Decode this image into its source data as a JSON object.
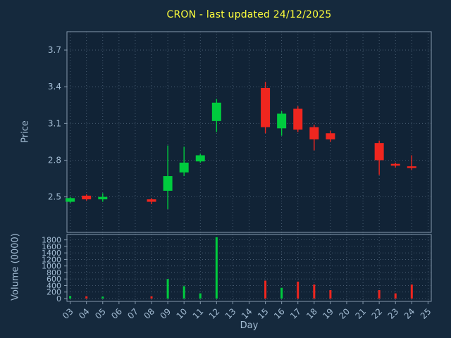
{
  "title": "CRON - last updated 24/12/2025",
  "colors": {
    "figure_bg": "#15293d",
    "axes_bg": "#112336",
    "grid": "#51667b",
    "frame": "#8599ad",
    "text": "#a4bdd4",
    "title": "#ffff3b",
    "up": "#00cc3e",
    "down": "#f0261f"
  },
  "chart_data": {
    "type": "candlestick",
    "title": "CRON - last updated 24/12/2025",
    "xlabel": "Day",
    "x_ticks": [
      "03",
      "04",
      "05",
      "06",
      "07",
      "08",
      "09",
      "10",
      "11",
      "12",
      "13",
      "14",
      "15",
      "16",
      "17",
      "18",
      "19",
      "20",
      "21",
      "22",
      "23",
      "24",
      "25"
    ],
    "price_axis": {
      "label": "Price",
      "ticks": [
        2.5,
        2.8,
        3.1,
        3.4,
        3.7
      ],
      "range": [
        2.21,
        3.85
      ]
    },
    "volume_axis": {
      "label": "Volume (0000)",
      "ticks": [
        0,
        200,
        400,
        600,
        800,
        1000,
        1200,
        1400,
        1600,
        1800
      ],
      "range": [
        0,
        1900
      ]
    },
    "candles": [
      {
        "day": 3,
        "open": 2.46,
        "high": 2.5,
        "low": 2.45,
        "close": 2.49,
        "volume": 80
      },
      {
        "day": 4,
        "open": 2.51,
        "high": 2.52,
        "low": 2.47,
        "close": 2.48,
        "volume": 70
      },
      {
        "day": 5,
        "open": 2.48,
        "high": 2.53,
        "low": 2.46,
        "close": 2.5,
        "volume": 60
      },
      {
        "day": 8,
        "open": 2.48,
        "high": 2.49,
        "low": 2.44,
        "close": 2.46,
        "volume": 70
      },
      {
        "day": 9,
        "open": 2.55,
        "high": 2.92,
        "low": 2.4,
        "close": 2.67,
        "volume": 600
      },
      {
        "day": 10,
        "open": 2.7,
        "high": 2.91,
        "low": 2.67,
        "close": 2.78,
        "volume": 380
      },
      {
        "day": 11,
        "open": 2.79,
        "high": 2.85,
        "low": 2.78,
        "close": 2.84,
        "volume": 160
      },
      {
        "day": 12,
        "open": 3.12,
        "high": 3.3,
        "low": 3.03,
        "close": 3.27,
        "volume": 1880
      },
      {
        "day": 15,
        "open": 3.39,
        "high": 3.44,
        "low": 3.02,
        "close": 3.07,
        "volume": 550
      },
      {
        "day": 16,
        "open": 3.06,
        "high": 3.2,
        "low": 3.0,
        "close": 3.18,
        "volume": 330
      },
      {
        "day": 17,
        "open": 3.22,
        "high": 3.24,
        "low": 3.03,
        "close": 3.05,
        "volume": 520
      },
      {
        "day": 18,
        "open": 3.07,
        "high": 3.09,
        "low": 2.88,
        "close": 2.97,
        "volume": 430
      },
      {
        "day": 19,
        "open": 3.02,
        "high": 3.04,
        "low": 2.95,
        "close": 2.97,
        "volume": 260
      },
      {
        "day": 22,
        "open": 2.94,
        "high": 2.96,
        "low": 2.68,
        "close": 2.8,
        "volume": 260
      },
      {
        "day": 23,
        "open": 2.77,
        "high": 2.78,
        "low": 2.74,
        "close": 2.755,
        "volume": 160
      },
      {
        "day": 24,
        "open": 2.75,
        "high": 2.84,
        "low": 2.72,
        "close": 2.74,
        "volume": 430
      }
    ]
  }
}
